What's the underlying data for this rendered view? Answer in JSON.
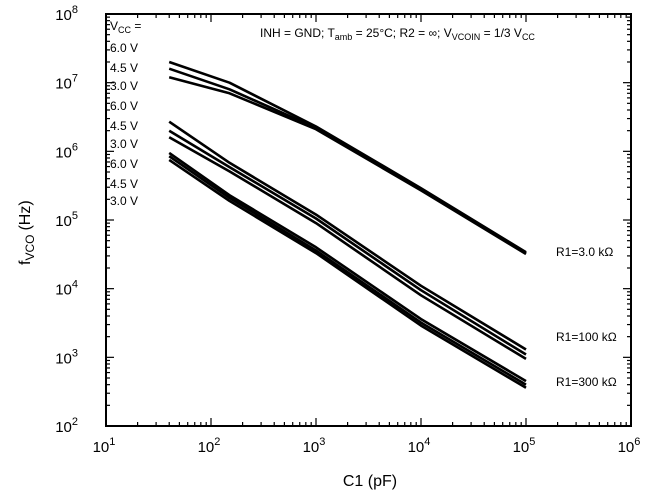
{
  "chart_data": {
    "type": "line",
    "scale": {
      "x": "log",
      "y": "log"
    },
    "xlabel": {
      "main": "C1 (pF)"
    },
    "ylabel": {
      "main": "f",
      "sub": "VCO",
      "unit": "(Hz)"
    },
    "xlim": [
      10,
      1000000
    ],
    "ylim": [
      100,
      100000000
    ],
    "x_ticks": [
      {
        "base": "10",
        "exp": "1",
        "value": 10
      },
      {
        "base": "10",
        "exp": "2",
        "value": 100
      },
      {
        "base": "10",
        "exp": "3",
        "value": 1000
      },
      {
        "base": "10",
        "exp": "4",
        "value": 10000
      },
      {
        "base": "10",
        "exp": "5",
        "value": 100000
      },
      {
        "base": "10",
        "exp": "6",
        "value": 1000000
      }
    ],
    "y_ticks": [
      {
        "base": "10",
        "exp": "2",
        "value": 100
      },
      {
        "base": "10",
        "exp": "3",
        "value": 1000
      },
      {
        "base": "10",
        "exp": "4",
        "value": 10000
      },
      {
        "base": "10",
        "exp": "5",
        "value": 100000
      },
      {
        "base": "10",
        "exp": "6",
        "value": 1000000
      },
      {
        "base": "10",
        "exp": "7",
        "value": 10000000
      },
      {
        "base": "10",
        "exp": "8",
        "value": 100000000
      }
    ],
    "conditions": {
      "p1": "INH = GND; T",
      "p1_sub": "amb",
      "p2": " = 25°C; R2 = ∞; V",
      "p2_sub": "VCOIN",
      "p3": " = 1/3 V",
      "p3_sub": "CC"
    },
    "vcc_header": {
      "v": "V",
      "sub": "CC",
      "rest": " ="
    },
    "groups": [
      {
        "label": "R1=3.0 kΩ",
        "vcc_labels": [
          "6.0 V",
          "4.5 V",
          "3.0 V"
        ],
        "series": [
          {
            "x": [
              40,
              150,
              1000,
              10000,
              100000
            ],
            "y": [
              20000000,
              10000000,
              2300000,
              290000,
              34000
            ]
          },
          {
            "x": [
              40,
              150,
              1000,
              10000,
              100000
            ],
            "y": [
              16000000,
              8000000,
              2200000,
              280000,
              33000
            ]
          },
          {
            "x": [
              40,
              150,
              1000,
              10000,
              100000
            ],
            "y": [
              12000000,
              7000000,
              2100000,
              270000,
              32000
            ]
          }
        ]
      },
      {
        "label": "R1=100 kΩ",
        "vcc_labels": [
          "6.0 V",
          "4.5 V",
          "3.0 V"
        ],
        "series": [
          {
            "x": [
              40,
              150,
              1000,
              10000,
              100000
            ],
            "y": [
              2700000,
              680000,
              120000,
              11000,
              1300
            ]
          },
          {
            "x": [
              40,
              150,
              1000,
              10000,
              100000
            ],
            "y": [
              2000000,
              590000,
              105000,
              9500,
              1100
            ]
          },
          {
            "x": [
              40,
              150,
              1000,
              10000,
              100000
            ],
            "y": [
              1600000,
              510000,
              90000,
              8000,
              950
            ]
          }
        ]
      },
      {
        "label": "R1=300 kΩ",
        "vcc_labels": [
          "6.0 V",
          "4.5 V",
          "3.0 V"
        ],
        "series": [
          {
            "x": [
              40,
              150,
              1000,
              10000,
              100000
            ],
            "y": [
              950000,
              230000,
              40000,
              3600,
              450
            ]
          },
          {
            "x": [
              40,
              150,
              1000,
              10000,
              100000
            ],
            "y": [
              850000,
              210000,
              36000,
              3200,
              400
            ]
          },
          {
            "x": [
              40,
              150,
              1000,
              10000,
              100000
            ],
            "y": [
              750000,
              190000,
              33000,
              2900,
              360
            ]
          }
        ]
      }
    ]
  }
}
